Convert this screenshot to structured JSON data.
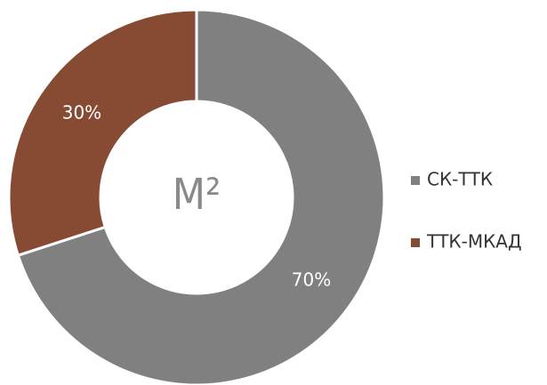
{
  "chart_data": {
    "type": "donut",
    "center_label": "М²",
    "categories": [
      "СК-ТТК",
      "ТТК-МКАД"
    ],
    "values": [
      70,
      30
    ],
    "value_labels": [
      "70%",
      "30%"
    ],
    "colors": [
      "#808080",
      "#874a33"
    ],
    "legend": "right"
  }
}
